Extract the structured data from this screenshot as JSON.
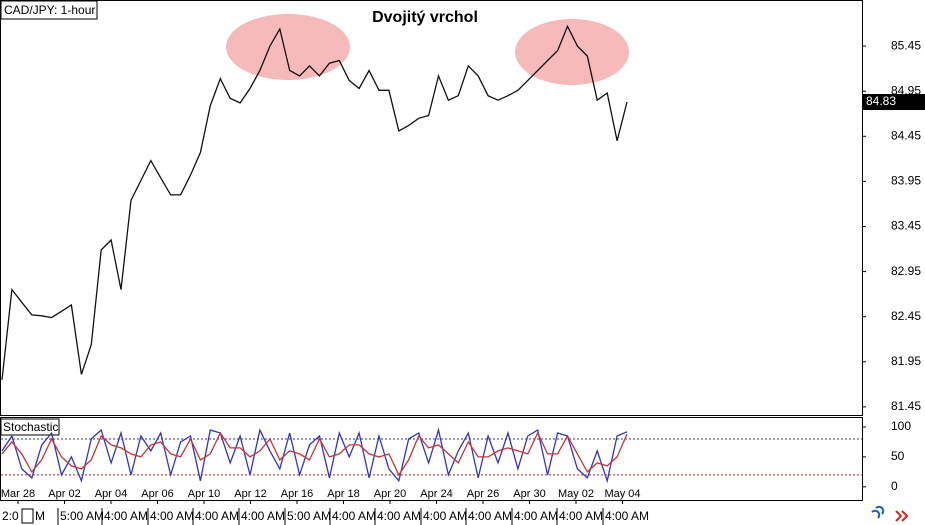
{
  "chart_data": [
    {
      "type": "line",
      "title": "CAD/JPY: 1-hour",
      "annotation": "Dvojitý vrchol",
      "ylim": [
        81.36,
        85.95
      ],
      "yticks": [
        81.45,
        81.95,
        82.45,
        82.95,
        83.45,
        83.95,
        84.45,
        84.95,
        85.45
      ],
      "last_price": 84.83,
      "date_labels": [
        "Mar 28",
        "Apr 02",
        "Apr 04",
        "Apr 06",
        "Apr 10",
        "Apr 12",
        "Apr 16",
        "Apr 18",
        "Apr 20",
        "Apr 24",
        "Apr 26",
        "Apr 30",
        "May 02",
        "May 04"
      ],
      "series": [
        {
          "color": "#111111",
          "values": [
            81.75,
            82.75,
            82.61,
            82.47,
            82.46,
            82.44,
            82.51,
            82.58,
            81.81,
            82.14,
            83.19,
            83.3,
            82.75,
            83.74,
            83.96,
            84.18,
            83.99,
            83.8,
            83.8,
            84.02,
            84.27,
            84.79,
            85.09,
            84.87,
            84.82,
            84.98,
            85.18,
            85.45,
            85.64,
            85.18,
            85.12,
            85.23,
            85.12,
            85.26,
            85.29,
            85.07,
            84.98,
            85.18,
            84.96,
            84.96,
            84.51,
            84.57,
            84.65,
            84.68,
            85.12,
            84.85,
            84.9,
            85.23,
            85.12,
            84.9,
            84.85,
            84.9,
            84.96,
            85.07,
            85.18,
            85.29,
            85.4,
            85.67,
            85.45,
            85.34,
            84.85,
            84.93,
            84.4,
            84.83
          ]
        }
      ]
    },
    {
      "type": "line",
      "label": "Stochastic",
      "ylim": [
        -22,
        115
      ],
      "yticks": [
        0,
        50,
        100
      ],
      "levels": [
        {
          "value": 80,
          "color": "#2b2bd0"
        },
        {
          "value": 20,
          "color": "#cc2222"
        }
      ],
      "series": [
        {
          "color": "#3333cc",
          "values": [
            60,
            85,
            30,
            15,
            70,
            90,
            20,
            50,
            10,
            80,
            95,
            40,
            90,
            20,
            85,
            60,
            90,
            20,
            75,
            85,
            10,
            95,
            90,
            40,
            85,
            20,
            95,
            60,
            30,
            90,
            20,
            70,
            85,
            15,
            90,
            50,
            90,
            15,
            85,
            30,
            10,
            80,
            90,
            40,
            95,
            20,
            60,
            90,
            15,
            85,
            40,
            90,
            30,
            85,
            95,
            20,
            90,
            85,
            30,
            15,
            60,
            10,
            85,
            92
          ]
        },
        {
          "color": "#cc3333",
          "values": [
            55,
            75,
            55,
            25,
            45,
            80,
            50,
            35,
            30,
            45,
            85,
            70,
            65,
            55,
            50,
            70,
            75,
            55,
            50,
            80,
            45,
            55,
            90,
            65,
            65,
            50,
            60,
            80,
            45,
            60,
            55,
            45,
            80,
            50,
            55,
            70,
            70,
            55,
            50,
            55,
            20,
            45,
            85,
            65,
            70,
            55,
            40,
            75,
            50,
            50,
            60,
            65,
            60,
            55,
            90,
            55,
            55,
            85,
            55,
            25,
            40,
            35,
            50,
            88
          ]
        }
      ]
    }
  ],
  "time_strip": [
    "2:0",
    "M",
    "5:00 AM",
    "4:00 AM",
    "4:00 AM",
    "4:00 AM",
    "4:00 AM",
    "5:00 AM",
    "4:00 AM",
    "4:00 AM",
    "4:00 AM",
    "4:00 AM",
    "4:00 AM",
    "4:00 AM",
    "4:00 AM"
  ]
}
